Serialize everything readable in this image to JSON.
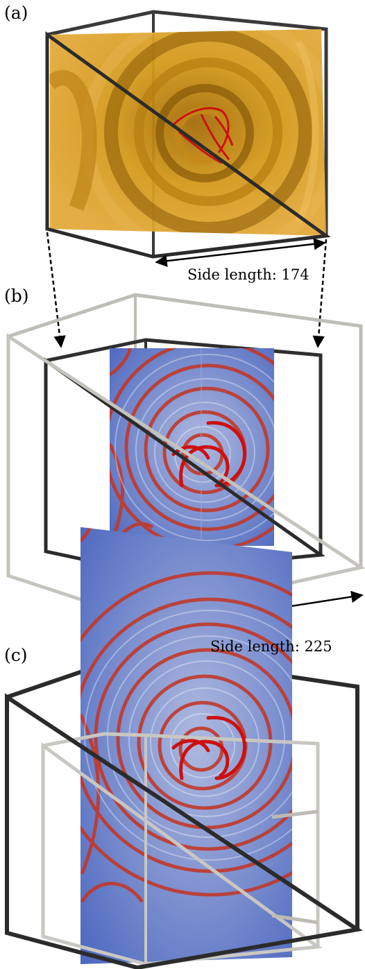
{
  "panels": [
    {
      "label": "(a)"
    },
    {
      "label": "(b)"
    },
    {
      "label": "(c)"
    }
  ],
  "annotations": {
    "side_length_a": "Side length: 174",
    "side_length_b": "Side length: 225"
  },
  "colors": {
    "isosurface": "#d4940f",
    "filament": "#d01010",
    "slice_background": "#4a69c0",
    "wavefront": "#c0392b",
    "inner_box": "#2b2b2b",
    "outer_box": "#c9c7c2"
  }
}
